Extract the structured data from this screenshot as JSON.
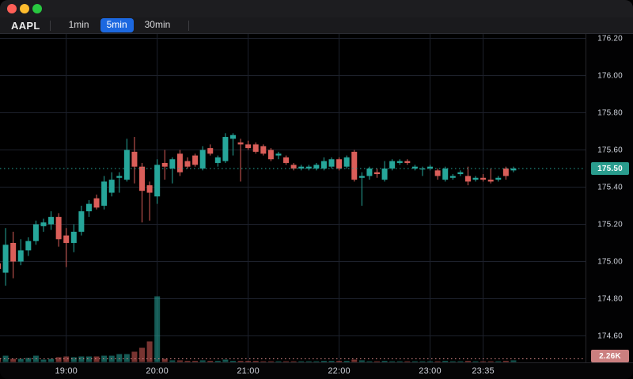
{
  "window": {
    "traffic_lights": [
      "close",
      "minimize",
      "zoom"
    ]
  },
  "toolbar": {
    "symbol": "AAPL",
    "timeframes": [
      {
        "label": "1min",
        "active": false
      },
      {
        "label": "5min",
        "active": true
      },
      {
        "label": "30min",
        "active": false
      }
    ]
  },
  "price_axis": {
    "last_price_label": "175.50",
    "volume_label": "2.26K"
  },
  "colors": {
    "up": "#26a69a",
    "down": "#da5e59",
    "vol_up": "rgba(38,166,154,0.55)",
    "vol_down": "rgba(218,94,89,0.55)",
    "grid": "#1d212c",
    "price_line": "#26a69a",
    "vol_line": "#d98a8a",
    "price_tag_bg": "#2a9d8e",
    "vol_tag_bg": "#cb7f7f",
    "accent_blue": "#1c68e0"
  },
  "chart_data": {
    "type": "candlestick+volume",
    "symbol": "AAPL",
    "interval": "5min",
    "last_price": 175.5,
    "last_volume_label": "2.26K",
    "y_ticks": [
      {
        "price": 176.2,
        "label": "176.20"
      },
      {
        "price": 176.0,
        "label": "176.00"
      },
      {
        "price": 175.8,
        "label": "175.80"
      },
      {
        "price": 175.6,
        "label": "175.60"
      },
      {
        "price": 175.4,
        "label": "175.40"
      },
      {
        "price": 175.2,
        "label": "175.20"
      },
      {
        "price": 175.0,
        "label": "175.00"
      },
      {
        "price": 174.8,
        "label": "174.80"
      },
      {
        "price": 174.6,
        "label": "174.60"
      }
    ],
    "x_ticks": [
      "19:00",
      "20:00",
      "21:00",
      "22:00",
      "23:00",
      "23:35"
    ],
    "volume_unit": "K",
    "candles": [
      {
        "t": "18:15",
        "o": 174.99,
        "h": 175.03,
        "l": 174.93,
        "c": 174.96,
        "v": 5.7
      },
      {
        "t": "18:20",
        "o": 174.94,
        "h": 175.18,
        "l": 174.87,
        "c": 175.09,
        "v": 9.0
      },
      {
        "t": "18:25",
        "o": 175.1,
        "h": 175.16,
        "l": 174.91,
        "c": 175.0,
        "v": 4.5
      },
      {
        "t": "18:30",
        "o": 175.0,
        "h": 175.12,
        "l": 174.98,
        "c": 175.06,
        "v": 4.5
      },
      {
        "t": "18:35",
        "o": 175.06,
        "h": 175.13,
        "l": 175.03,
        "c": 175.11,
        "v": 5.7
      },
      {
        "t": "18:40",
        "o": 175.11,
        "h": 175.22,
        "l": 175.09,
        "c": 175.2,
        "v": 9.0
      },
      {
        "t": "18:45",
        "o": 175.19,
        "h": 175.23,
        "l": 175.16,
        "c": 175.21,
        "v": 3.4
      },
      {
        "t": "18:50",
        "o": 175.2,
        "h": 175.27,
        "l": 175.17,
        "c": 175.24,
        "v": 4.5
      },
      {
        "t": "18:55",
        "o": 175.24,
        "h": 175.26,
        "l": 175.08,
        "c": 175.12,
        "v": 6.8
      },
      {
        "t": "19:00",
        "o": 175.14,
        "h": 175.18,
        "l": 174.97,
        "c": 175.1,
        "v": 7.9
      },
      {
        "t": "19:05",
        "o": 175.1,
        "h": 175.2,
        "l": 175.05,
        "c": 175.16,
        "v": 6.8
      },
      {
        "t": "19:10",
        "o": 175.16,
        "h": 175.3,
        "l": 175.14,
        "c": 175.27,
        "v": 7.9
      },
      {
        "t": "19:15",
        "o": 175.27,
        "h": 175.33,
        "l": 175.24,
        "c": 175.31,
        "v": 7.9
      },
      {
        "t": "19:20",
        "o": 175.34,
        "h": 175.36,
        "l": 175.28,
        "c": 175.29,
        "v": 7.9
      },
      {
        "t": "19:25",
        "o": 175.3,
        "h": 175.46,
        "l": 175.28,
        "c": 175.43,
        "v": 9.0
      },
      {
        "t": "19:30",
        "o": 175.37,
        "h": 175.48,
        "l": 175.35,
        "c": 175.44,
        "v": 9.0
      },
      {
        "t": "19:35",
        "o": 175.45,
        "h": 175.48,
        "l": 175.37,
        "c": 175.46,
        "v": 11.3
      },
      {
        "t": "19:40",
        "o": 175.44,
        "h": 175.66,
        "l": 175.43,
        "c": 175.6,
        "v": 11.3
      },
      {
        "t": "19:45",
        "o": 175.59,
        "h": 175.67,
        "l": 175.42,
        "c": 175.51,
        "v": 14.7
      },
      {
        "t": "19:50",
        "o": 175.51,
        "h": 175.53,
        "l": 175.21,
        "c": 175.38,
        "v": 20.3
      },
      {
        "t": "19:55",
        "o": 175.41,
        "h": 175.43,
        "l": 175.22,
        "c": 175.37,
        "v": 29.4
      },
      {
        "t": "20:00",
        "o": 175.35,
        "h": 175.55,
        "l": 175.31,
        "c": 175.52,
        "v": 93.8
      },
      {
        "t": "20:05",
        "o": 175.53,
        "h": 175.6,
        "l": 175.44,
        "c": 175.51,
        "v": 4.5
      },
      {
        "t": "20:10",
        "o": 175.5,
        "h": 175.56,
        "l": 175.42,
        "c": 175.55,
        "v": 2.3
      },
      {
        "t": "20:15",
        "o": 175.58,
        "h": 175.6,
        "l": 175.46,
        "c": 175.48,
        "v": 2.3
      },
      {
        "t": "20:20",
        "o": 175.54,
        "h": 175.56,
        "l": 175.5,
        "c": 175.51,
        "v": 1.7
      },
      {
        "t": "20:25",
        "o": 175.57,
        "h": 175.58,
        "l": 175.51,
        "c": 175.52,
        "v": 1.7
      },
      {
        "t": "20:30",
        "o": 175.5,
        "h": 175.62,
        "l": 175.49,
        "c": 175.6,
        "v": 2.3
      },
      {
        "t": "20:35",
        "o": 175.61,
        "h": 175.63,
        "l": 175.57,
        "c": 175.58,
        "v": 1.7
      },
      {
        "t": "20:40",
        "o": 175.53,
        "h": 175.57,
        "l": 175.51,
        "c": 175.56,
        "v": 1.7
      },
      {
        "t": "20:45",
        "o": 175.54,
        "h": 175.69,
        "l": 175.53,
        "c": 175.67,
        "v": 3.4
      },
      {
        "t": "20:50",
        "o": 175.66,
        "h": 175.69,
        "l": 175.57,
        "c": 175.68,
        "v": 1.7
      },
      {
        "t": "20:55",
        "o": 175.64,
        "h": 175.66,
        "l": 175.43,
        "c": 175.63,
        "v": 1.7
      },
      {
        "t": "21:00",
        "o": 175.63,
        "h": 175.65,
        "l": 175.6,
        "c": 175.61,
        "v": 1.7
      },
      {
        "t": "21:05",
        "o": 175.63,
        "h": 175.64,
        "l": 175.58,
        "c": 175.59,
        "v": 1.7
      },
      {
        "t": "21:10",
        "o": 175.62,
        "h": 175.63,
        "l": 175.57,
        "c": 175.58,
        "v": 1.1
      },
      {
        "t": "21:15",
        "o": 175.6,
        "h": 175.61,
        "l": 175.54,
        "c": 175.55,
        "v": 1.1
      },
      {
        "t": "21:20",
        "o": 175.57,
        "h": 175.59,
        "l": 175.55,
        "c": 175.58,
        "v": 1.1
      },
      {
        "t": "21:25",
        "o": 175.56,
        "h": 175.57,
        "l": 175.52,
        "c": 175.53,
        "v": 1.1
      },
      {
        "t": "21:30",
        "o": 175.52,
        "h": 175.53,
        "l": 175.49,
        "c": 175.5,
        "v": 1.1
      },
      {
        "t": "21:35",
        "o": 175.5,
        "h": 175.52,
        "l": 175.49,
        "c": 175.51,
        "v": 1.1
      },
      {
        "t": "21:40",
        "o": 175.5,
        "h": 175.52,
        "l": 175.49,
        "c": 175.51,
        "v": 1.1
      },
      {
        "t": "21:45",
        "o": 175.5,
        "h": 175.53,
        "l": 175.49,
        "c": 175.52,
        "v": 1.1
      },
      {
        "t": "21:50",
        "o": 175.5,
        "h": 175.56,
        "l": 175.49,
        "c": 175.54,
        "v": 1.7
      },
      {
        "t": "21:55",
        "o": 175.51,
        "h": 175.56,
        "l": 175.5,
        "c": 175.55,
        "v": 1.7
      },
      {
        "t": "22:00",
        "o": 175.55,
        "h": 175.56,
        "l": 175.49,
        "c": 175.5,
        "v": 1.7
      },
      {
        "t": "22:05",
        "o": 175.51,
        "h": 175.57,
        "l": 175.5,
        "c": 175.56,
        "v": 1.7
      },
      {
        "t": "22:10",
        "o": 175.59,
        "h": 175.6,
        "l": 175.43,
        "c": 175.44,
        "v": 3.4
      },
      {
        "t": "22:15",
        "o": 175.45,
        "h": 175.48,
        "l": 175.3,
        "c": 175.46,
        "v": 2.3
      },
      {
        "t": "22:20",
        "o": 175.46,
        "h": 175.51,
        "l": 175.44,
        "c": 175.5,
        "v": 1.1
      },
      {
        "t": "22:25",
        "o": 175.48,
        "h": 175.5,
        "l": 175.45,
        "c": 175.47,
        "v": 1.1
      },
      {
        "t": "22:30",
        "o": 175.44,
        "h": 175.54,
        "l": 175.43,
        "c": 175.5,
        "v": 1.7
      },
      {
        "t": "22:35",
        "o": 175.5,
        "h": 175.55,
        "l": 175.49,
        "c": 175.54,
        "v": 1.1
      },
      {
        "t": "22:40",
        "o": 175.53,
        "h": 175.55,
        "l": 175.52,
        "c": 175.54,
        "v": 1.1
      },
      {
        "t": "22:45",
        "o": 175.54,
        "h": 175.55,
        "l": 175.52,
        "c": 175.53,
        "v": 1.1
      },
      {
        "t": "22:50",
        "o": 175.5,
        "h": 175.52,
        "l": 175.49,
        "c": 175.51,
        "v": 1.1
      },
      {
        "t": "22:55",
        "o": 175.5,
        "h": 175.51,
        "l": 175.46,
        "c": 175.5,
        "v": 1.1
      },
      {
        "t": "23:00",
        "o": 175.5,
        "h": 175.52,
        "l": 175.49,
        "c": 175.51,
        "v": 1.1
      },
      {
        "t": "23:05",
        "o": 175.49,
        "h": 175.5,
        "l": 175.44,
        "c": 175.46,
        "v": 1.1
      },
      {
        "t": "23:10",
        "o": 175.44,
        "h": 175.51,
        "l": 175.43,
        "c": 175.5,
        "v": 1.7
      },
      {
        "t": "23:15",
        "o": 175.45,
        "h": 175.47,
        "l": 175.44,
        "c": 175.46,
        "v": 1.1
      },
      {
        "t": "23:20",
        "o": 175.47,
        "h": 175.49,
        "l": 175.46,
        "c": 175.48,
        "v": 1.1
      },
      {
        "t": "23:25",
        "o": 175.46,
        "h": 175.51,
        "l": 175.41,
        "c": 175.43,
        "v": 1.7
      },
      {
        "t": "23:30",
        "o": 175.44,
        "h": 175.46,
        "l": 175.43,
        "c": 175.45,
        "v": 1.1
      },
      {
        "t": "23:35",
        "o": 175.45,
        "h": 175.47,
        "l": 175.43,
        "c": 175.44,
        "v": 1.1
      },
      {
        "t": "23:40",
        "o": 175.44,
        "h": 175.5,
        "l": 175.42,
        "c": 175.43,
        "v": 1.1
      },
      {
        "t": "23:45",
        "o": 175.44,
        "h": 175.46,
        "l": 175.43,
        "c": 175.45,
        "v": 1.1
      },
      {
        "t": "23:50",
        "o": 175.5,
        "h": 175.51,
        "l": 175.44,
        "c": 175.46,
        "v": 1.7
      },
      {
        "t": "23:55",
        "o": 175.49,
        "h": 175.51,
        "l": 175.48,
        "c": 175.5,
        "v": 2.26
      }
    ]
  }
}
